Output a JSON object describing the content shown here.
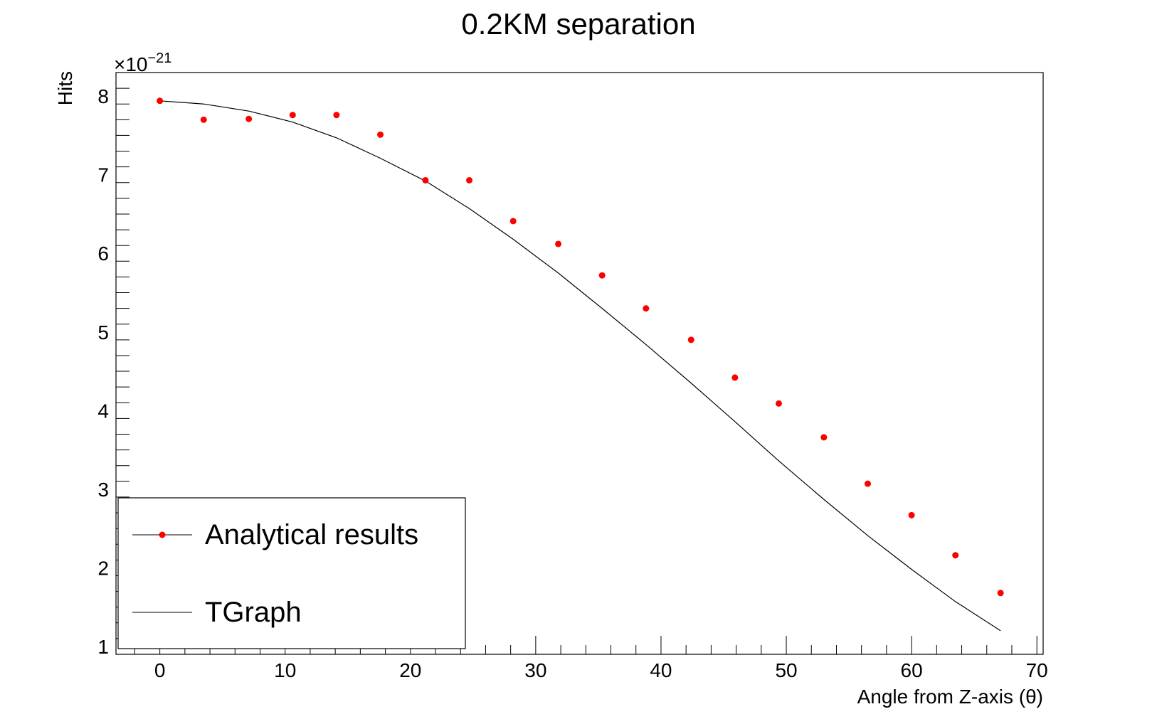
{
  "chart_data": {
    "type": "scatter",
    "title": "0.2KM separation",
    "xlabel": "Angle from Z-axis (θ)",
    "ylabel": "Hits",
    "y_exponent": "×10",
    "y_exponent_power": "−21",
    "xlim": [
      -3.5,
      70.5
    ],
    "ylim": [
      0.9,
      8.3
    ],
    "x_ticks": [
      0,
      10,
      20,
      30,
      40,
      50,
      60,
      70
    ],
    "y_ticks": [
      1,
      2,
      3,
      4,
      5,
      6,
      7,
      8
    ],
    "grid": false,
    "legend_position": "bottom-left",
    "legend": [
      "Analytical results",
      "TGraph"
    ],
    "series": [
      {
        "name": "Analytical results",
        "style": "markers",
        "color": "#ff0000",
        "x": [
          0,
          3.5,
          7.1,
          10.6,
          14.1,
          17.6,
          21.2,
          24.7,
          28.2,
          31.8,
          35.3,
          38.8,
          42.4,
          45.9,
          49.4,
          53.0,
          56.5,
          60.0,
          63.5,
          67.1
        ],
        "y": [
          7.94,
          7.7,
          7.71,
          7.76,
          7.76,
          7.51,
          6.93,
          6.93,
          6.41,
          6.12,
          5.72,
          5.3,
          4.9,
          4.42,
          4.09,
          3.66,
          3.07,
          2.67,
          2.16,
          1.68
        ]
      },
      {
        "name": "TGraph",
        "style": "line",
        "color": "#000000",
        "x": [
          0,
          3.5,
          7.1,
          10.6,
          14.1,
          17.6,
          21.2,
          24.7,
          28.2,
          31.8,
          35.3,
          38.8,
          42.4,
          45.9,
          49.4,
          53.0,
          56.5,
          60.0,
          63.5,
          67.1
        ],
        "y": [
          7.94,
          7.9,
          7.81,
          7.67,
          7.47,
          7.21,
          6.92,
          6.57,
          6.18,
          5.75,
          5.3,
          4.84,
          4.35,
          3.86,
          3.36,
          2.87,
          2.41,
          1.98,
          1.57,
          1.2
        ]
      }
    ]
  }
}
